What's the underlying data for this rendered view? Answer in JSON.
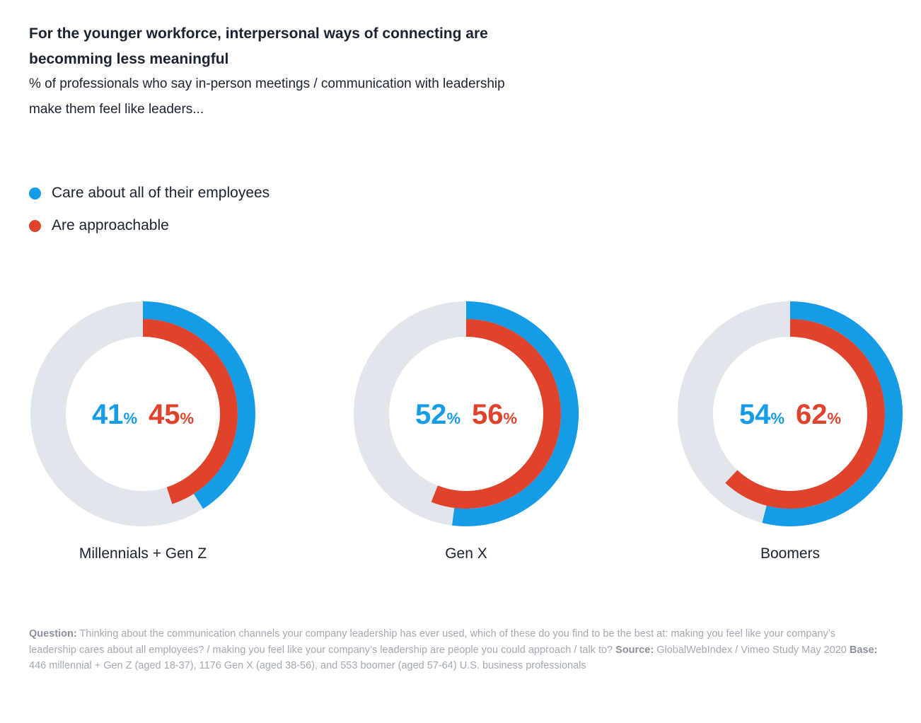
{
  "header": {
    "title": "For the younger workforce, interpersonal ways of connecting are becomming less meaningful",
    "subtitle": "% of professionals who say in-person meetings / communication with leadership make them feel like leaders..."
  },
  "colors": {
    "care": "#169be6",
    "approachable": "#e0432b",
    "track": "#e1e6ec",
    "label": "#1a2332"
  },
  "legend": {
    "items": [
      {
        "label": "Care about all of their employees",
        "color": "#169be6"
      },
      {
        "label": "Are approachable",
        "color": "#e0432b"
      }
    ]
  },
  "chart_data": {
    "type": "donut",
    "unit": "%",
    "max": 100,
    "categories": [
      "Millennials + Gen Z",
      "Gen X",
      "Boomers"
    ],
    "series": [
      {
        "name": "Care about all of their employees",
        "color": "#169be6",
        "values": [
          41,
          52,
          54
        ]
      },
      {
        "name": "Are approachable",
        "color": "#e0432b",
        "values": [
          45,
          56,
          62
        ]
      }
    ]
  },
  "footnote": {
    "question_label": "Question:",
    "question_text": "Thinking about the communication channels your company leadership has ever used, which of these do you find to be the best at: making you feel like your company’s leadership cares about all employees? / making you feel like your company’s leadership are people you could approach / talk to?",
    "source_label": "Source:",
    "source_text": "GlobalWebIndex / Vimeo Study May 2020",
    "base_label": "Base:",
    "base_text": "446 millennial + Gen Z (aged 18-37), 1176 Gen X (aged 38-56), and 553 boomer (aged 57-64) U.S. business professionals"
  }
}
